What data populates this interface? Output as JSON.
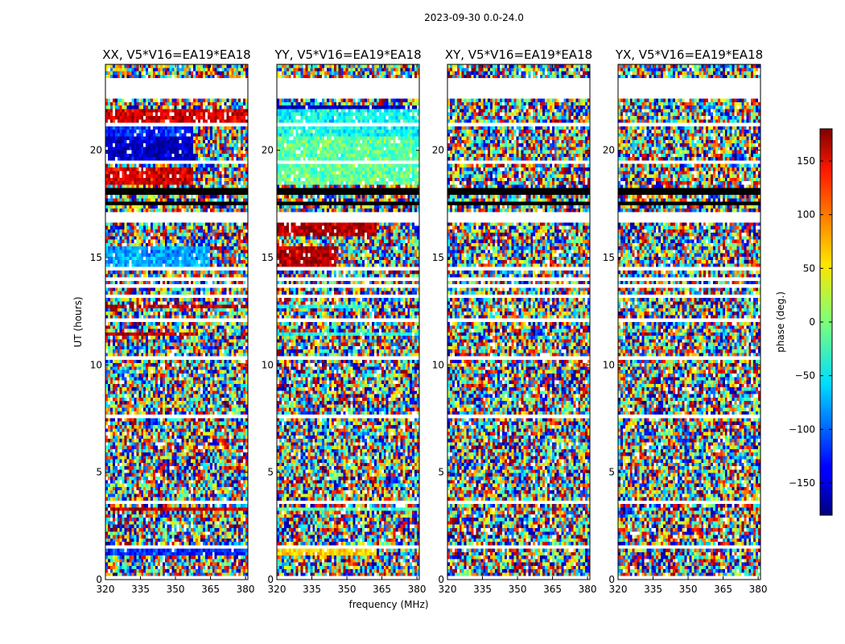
{
  "chart_data": {
    "type": "heatmap",
    "title": "2023-09-30 0.0-24.0",
    "xlabel": "frequency (MHz)",
    "ylabel": "UT (hours)",
    "xlim": [
      320,
      381
    ],
    "ylim": [
      0,
      24
    ],
    "x_ticks": [
      "320",
      "335",
      "350",
      "365",
      "380"
    ],
    "x_tick_values": [
      320,
      335,
      350,
      365,
      380
    ],
    "y_ticks": [
      "0",
      "5",
      "10",
      "15",
      "20"
    ],
    "y_tick_values": [
      0,
      5,
      10,
      15,
      20
    ],
    "colorbar": {
      "label": "phase (deg.)",
      "range": [
        -180,
        180
      ],
      "ticks": [
        "150",
        "100",
        "50",
        "0",
        "−50",
        "−100",
        "−150"
      ],
      "tick_values": [
        150,
        100,
        50,
        0,
        -50,
        -100,
        -150
      ],
      "colormap": "jet"
    },
    "flagged_time_bands_hours": [
      [
        0.0,
        0.15
      ],
      [
        1.05,
        1.15
      ],
      [
        1.45,
        1.55
      ],
      [
        2.05,
        2.1
      ],
      [
        3.55,
        3.65
      ],
      [
        5.05,
        5.1
      ],
      [
        7.5,
        7.62
      ],
      [
        9.55,
        9.65
      ],
      [
        10.25,
        10.35
      ],
      [
        10.85,
        10.95
      ],
      [
        12.05,
        12.1
      ],
      [
        13.2,
        13.35
      ],
      [
        13.6,
        13.72
      ],
      [
        14.0,
        14.1
      ],
      [
        14.45,
        14.55
      ],
      [
        16.3,
        16.38
      ],
      [
        16.65,
        17.2
      ],
      [
        18.55,
        18.6
      ],
      [
        19.4,
        19.5
      ],
      [
        20.25,
        20.3
      ],
      [
        21.15,
        21.22
      ],
      [
        21.85,
        22.0
      ],
      [
        22.4,
        22.45
      ],
      [
        22.45,
        23.3
      ],
      [
        23.45,
        23.5
      ]
    ],
    "black_time_bands_hours": [
      [
        17.45,
        17.65
      ],
      [
        17.95,
        18.05
      ],
      [
        18.15,
        18.2
      ],
      [
        13.45,
        13.5
      ],
      [
        11.95,
        12.0
      ]
    ],
    "panels": [
      {
        "title": "XX, V5*V16=EA19*EA18",
        "coherent_bands": [
          {
            "t0": 1.15,
            "t1": 1.45,
            "f0": 320,
            "f1": 381,
            "phase": -120
          },
          {
            "t0": 3.15,
            "t1": 3.35,
            "f0": 320,
            "f1": 381,
            "phase": 160
          },
          {
            "t0": 9.85,
            "t1": 10.0,
            "f0": 320,
            "f1": 381,
            "phase": 160
          },
          {
            "t0": 11.35,
            "t1": 11.55,
            "f0": 320,
            "f1": 360,
            "phase": 160
          },
          {
            "t0": 12.6,
            "t1": 12.8,
            "f0": 320,
            "f1": 381,
            "phase": 160
          },
          {
            "t0": 14.6,
            "t1": 15.6,
            "f0": 320,
            "f1": 365,
            "phase": -75
          },
          {
            "t0": 18.45,
            "t1": 19.2,
            "f0": 320,
            "f1": 358,
            "phase": 150
          },
          {
            "t0": 19.6,
            "t1": 20.6,
            "f0": 320,
            "f1": 358,
            "phase": -155
          },
          {
            "t0": 20.6,
            "t1": 21.1,
            "f0": 320,
            "f1": 358,
            "phase": -120
          },
          {
            "t0": 21.25,
            "t1": 21.85,
            "f0": 320,
            "f1": 381,
            "phase": 150
          }
        ]
      },
      {
        "title": "YY, V5*V16=EA19*EA18",
        "coherent_bands": [
          {
            "t0": 1.15,
            "t1": 1.45,
            "f0": 320,
            "f1": 363,
            "phase": 60
          },
          {
            "t0": 3.15,
            "t1": 3.35,
            "f0": 320,
            "f1": 381,
            "phase": -20
          },
          {
            "t0": 9.85,
            "t1": 10.0,
            "f0": 320,
            "f1": 381,
            "phase": 20
          },
          {
            "t0": 11.35,
            "t1": 11.55,
            "f0": 320,
            "f1": 381,
            "phase": -40
          },
          {
            "t0": 12.6,
            "t1": 12.8,
            "f0": 320,
            "f1": 360,
            "phase": -40
          },
          {
            "t0": 14.6,
            "t1": 15.5,
            "f0": 320,
            "f1": 345,
            "phase": 160
          },
          {
            "t0": 16.0,
            "t1": 16.6,
            "f0": 320,
            "f1": 363,
            "phase": 165
          },
          {
            "t0": 18.45,
            "t1": 20.6,
            "f0": 320,
            "f1": 381,
            "phase": -10
          },
          {
            "t0": 20.6,
            "t1": 21.85,
            "f0": 320,
            "f1": 381,
            "phase": -40
          },
          {
            "t0": 21.85,
            "t1": 22.1,
            "f0": 320,
            "f1": 381,
            "phase": -160
          }
        ]
      },
      {
        "title": "XY, V5*V16=EA19*EA18",
        "coherent_bands": []
      },
      {
        "title": "YX, V5*V16=EA19*EA18",
        "coherent_bands": []
      }
    ]
  }
}
